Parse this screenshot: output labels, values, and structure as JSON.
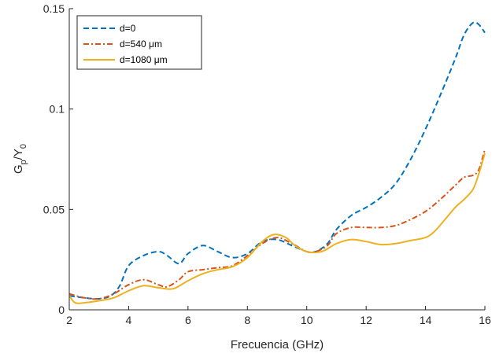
{
  "chart_data": {
    "type": "line",
    "xlabel": "Frecuencia (GHz)",
    "ylabel": {
      "main1": "G",
      "sub1": "p",
      "main2": "/Y",
      "sub2": "0"
    },
    "xlim": [
      2,
      16
    ],
    "ylim": [
      0,
      0.15
    ],
    "xticks": [
      2,
      4,
      6,
      8,
      10,
      12,
      14,
      16
    ],
    "xtick_labels": [
      "2",
      "4",
      "6",
      "8",
      "10",
      "12",
      "14",
      "16"
    ],
    "yticks": [
      0,
      0.05,
      0.1,
      0.15
    ],
    "ytick_labels": [
      "0",
      "0.05",
      "0.1",
      "0.15"
    ],
    "grid": false,
    "legend_position": "top-left",
    "series": [
      {
        "name": "d=0",
        "color": "#0072BD",
        "style": "dashed",
        "x": [
          2,
          2.5,
          3,
          3.4,
          3.7,
          4,
          4.5,
          5,
          5.3,
          5.7,
          6,
          6.5,
          7,
          7.5,
          8,
          8.5,
          9,
          9.5,
          10,
          10.3,
          10.7,
          11,
          11.5,
          12,
          12.5,
          13,
          13.5,
          14,
          14.5,
          15,
          15.3,
          15.6,
          15.8,
          16
        ],
        "y": [
          0.007,
          0.006,
          0.0055,
          0.007,
          0.012,
          0.022,
          0.027,
          0.029,
          0.027,
          0.023,
          0.028,
          0.032,
          0.029,
          0.026,
          0.028,
          0.034,
          0.035,
          0.032,
          0.029,
          0.029,
          0.033,
          0.04,
          0.047,
          0.051,
          0.056,
          0.063,
          0.075,
          0.09,
          0.107,
          0.125,
          0.137,
          0.143,
          0.142,
          0.138
        ]
      },
      {
        "name": "d=540 μm",
        "color": "#D95319",
        "style": "dashdot",
        "x": [
          2,
          2.5,
          3,
          3.5,
          4,
          4.5,
          5,
          5.3,
          5.7,
          6,
          6.5,
          7,
          7.5,
          8,
          8.5,
          9,
          9.5,
          10,
          10.3,
          10.7,
          11,
          11.5,
          12,
          12.5,
          13,
          13.5,
          14,
          14.5,
          15,
          15.3,
          15.6,
          15.8,
          16
        ],
        "y": [
          0.008,
          0.006,
          0.0055,
          0.008,
          0.0125,
          0.015,
          0.0125,
          0.0115,
          0.015,
          0.019,
          0.02,
          0.021,
          0.022,
          0.027,
          0.033,
          0.036,
          0.033,
          0.029,
          0.029,
          0.032,
          0.038,
          0.041,
          0.041,
          0.041,
          0.042,
          0.045,
          0.049,
          0.055,
          0.062,
          0.066,
          0.067,
          0.07,
          0.08
        ]
      },
      {
        "name": "d=1080 μm",
        "color": "#EDB120",
        "style": "solid",
        "x": [
          2,
          2.2,
          2.5,
          3,
          3.5,
          4,
          4.5,
          5,
          5.5,
          6,
          6.5,
          7,
          7.5,
          8,
          8.5,
          8.9,
          9.3,
          9.6,
          10,
          10.5,
          11,
          11.5,
          12,
          12.5,
          13,
          13.5,
          14,
          14.3,
          14.6,
          15,
          15.3,
          15.6,
          15.8,
          16
        ],
        "y": [
          0.007,
          0.0035,
          0.0035,
          0.0045,
          0.006,
          0.0095,
          0.012,
          0.011,
          0.0105,
          0.0145,
          0.018,
          0.02,
          0.0215,
          0.026,
          0.034,
          0.0375,
          0.036,
          0.032,
          0.029,
          0.029,
          0.033,
          0.035,
          0.034,
          0.0325,
          0.033,
          0.0345,
          0.036,
          0.039,
          0.044,
          0.051,
          0.055,
          0.06,
          0.068,
          0.078
        ]
      }
    ]
  }
}
